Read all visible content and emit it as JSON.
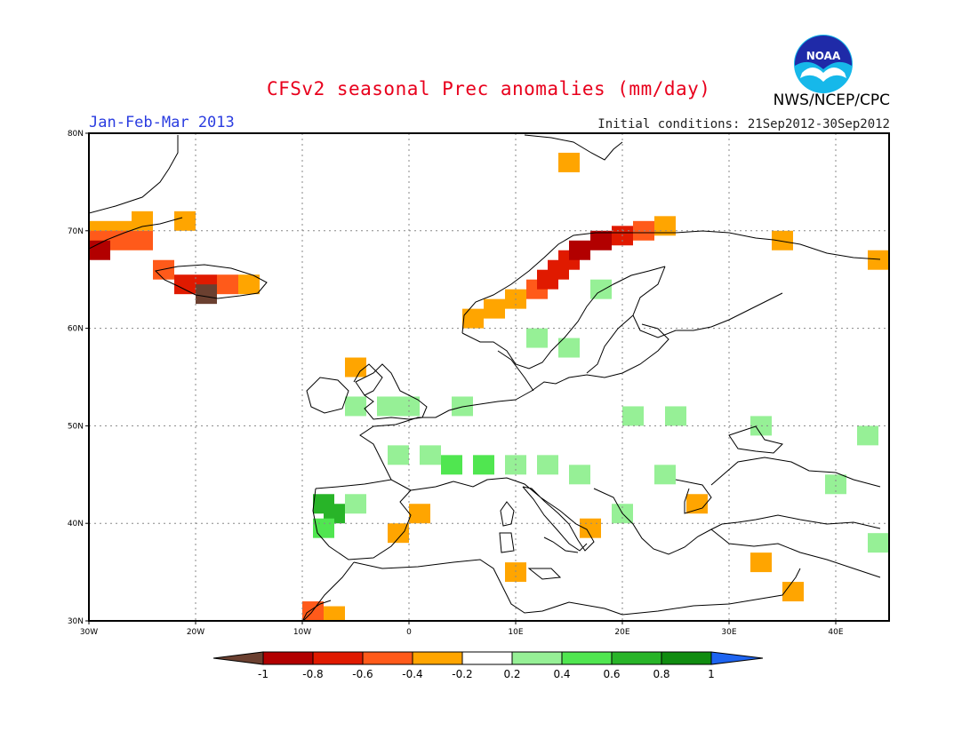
{
  "header": {
    "title": "CFSv2 seasonal Prec anomalies (mm/day)",
    "period": "Jan-Feb-Mar 2013",
    "initial_conditions": "Initial conditions: 21Sep2012-30Sep2012",
    "agency": "NWS/NCEP/CPC",
    "logo_text": "NOAA"
  },
  "axes": {
    "lon_range": [
      -30,
      45
    ],
    "lat_range": [
      30,
      80
    ],
    "lon_ticks": [
      "30W",
      "20W",
      "10W",
      "0",
      "10E",
      "20E",
      "30E",
      "40E"
    ],
    "lat_ticks": [
      "30N",
      "40N",
      "50N",
      "60N",
      "70N",
      "80N"
    ]
  },
  "colorbar": {
    "tick_labels": [
      "-1",
      "-0.8",
      "-0.6",
      "-0.4",
      "-0.2",
      "0.2",
      "0.4",
      "0.6",
      "0.8",
      "1"
    ],
    "colors": {
      "lt_-1": "#6b4030",
      "-1_-0.8": "#b20000",
      "-0.8_-0.6": "#e01a00",
      "-0.6_-0.4": "#ff5a1a",
      "-0.4_-0.2": "#ffa500",
      "-0.2_0.2": "#ffffff",
      "0.2_0.4": "#96f096",
      "0.4_0.6": "#50e650",
      "0.6_0.8": "#28b428",
      "0.8_1": "#108c10",
      "gt_1": "#1e64f0"
    }
  },
  "chart_data": {
    "type": "heatmap",
    "units": "mm/day",
    "cell_size_deg": 2,
    "cells": [
      {
        "lon": -29,
        "lat": 70,
        "v": -0.35
      },
      {
        "lon": -27,
        "lat": 70,
        "v": -0.35
      },
      {
        "lon": -25,
        "lat": 71,
        "v": -0.35
      },
      {
        "lon": -21,
        "lat": 71,
        "v": -0.35
      },
      {
        "lon": -29,
        "lat": 69,
        "v": -0.6
      },
      {
        "lon": -27,
        "lat": 69,
        "v": -0.6
      },
      {
        "lon": -25,
        "lat": 69,
        "v": -0.6
      },
      {
        "lon": -29,
        "lat": 68,
        "v": -0.85
      },
      {
        "lon": -23,
        "lat": 66,
        "v": -0.5
      },
      {
        "lon": -19,
        "lat": 64.5,
        "v": -0.8
      },
      {
        "lon": -21,
        "lat": 64.5,
        "v": -0.8
      },
      {
        "lon": -19,
        "lat": 63.5,
        "v": -1.2
      },
      {
        "lon": -17,
        "lat": 64.5,
        "v": -0.5
      },
      {
        "lon": -15,
        "lat": 64.5,
        "v": -0.3
      },
      {
        "lon": 15,
        "lat": 77,
        "v": -0.3
      },
      {
        "lon": 6,
        "lat": 61,
        "v": -0.3
      },
      {
        "lon": 8,
        "lat": 62,
        "v": -0.3
      },
      {
        "lon": 10,
        "lat": 63,
        "v": -0.35
      },
      {
        "lon": 12,
        "lat": 64,
        "v": -0.55
      },
      {
        "lon": 13,
        "lat": 65,
        "v": -0.7
      },
      {
        "lon": 14,
        "lat": 66,
        "v": -0.7
      },
      {
        "lon": 15,
        "lat": 67,
        "v": -0.75
      },
      {
        "lon": 16,
        "lat": 68,
        "v": -0.9
      },
      {
        "lon": 18,
        "lat": 69,
        "v": -0.85
      },
      {
        "lon": 20,
        "lat": 69.5,
        "v": -0.7
      },
      {
        "lon": 22,
        "lat": 70,
        "v": -0.45
      },
      {
        "lon": 24,
        "lat": 70.5,
        "v": -0.35
      },
      {
        "lon": 35,
        "lat": 69,
        "v": -0.3
      },
      {
        "lon": 44,
        "lat": 67,
        "v": -0.3
      },
      {
        "lon": -5,
        "lat": 56,
        "v": -0.3
      },
      {
        "lon": -1,
        "lat": 39,
        "v": -0.3
      },
      {
        "lon": 1,
        "lat": 41,
        "v": -0.3
      },
      {
        "lon": 10,
        "lat": 35,
        "v": -0.3
      },
      {
        "lon": 17,
        "lat": 39.5,
        "v": -0.3
      },
      {
        "lon": 27,
        "lat": 42,
        "v": -0.3
      },
      {
        "lon": 33,
        "lat": 36,
        "v": -0.3
      },
      {
        "lon": 36,
        "lat": 33,
        "v": -0.3
      },
      {
        "lon": -9,
        "lat": 31,
        "v": -0.6
      },
      {
        "lon": -7,
        "lat": 30.5,
        "v": -0.3
      },
      {
        "lon": -5,
        "lat": 52,
        "v": 0.3
      },
      {
        "lon": -2,
        "lat": 52,
        "v": 0.3
      },
      {
        "lon": 0,
        "lat": 52,
        "v": 0.3
      },
      {
        "lon": 5,
        "lat": 52,
        "v": 0.3
      },
      {
        "lon": -1,
        "lat": 47,
        "v": 0.3
      },
      {
        "lon": 2,
        "lat": 47,
        "v": 0.35
      },
      {
        "lon": 4,
        "lat": 46,
        "v": 0.5
      },
      {
        "lon": 7,
        "lat": 46,
        "v": 0.5
      },
      {
        "lon": 10,
        "lat": 46,
        "v": 0.35
      },
      {
        "lon": 13,
        "lat": 46,
        "v": 0.3
      },
      {
        "lon": 16,
        "lat": 45,
        "v": 0.3
      },
      {
        "lon": -8,
        "lat": 42,
        "v": 0.7
      },
      {
        "lon": -7,
        "lat": 41,
        "v": 0.6
      },
      {
        "lon": -8,
        "lat": 39.5,
        "v": 0.4
      },
      {
        "lon": -5,
        "lat": 42,
        "v": 0.3
      },
      {
        "lon": 12,
        "lat": 59,
        "v": 0.3
      },
      {
        "lon": 15,
        "lat": 58,
        "v": 0.3
      },
      {
        "lon": 21,
        "lat": 51,
        "v": 0.3
      },
      {
        "lon": 25,
        "lat": 51,
        "v": 0.3
      },
      {
        "lon": 33,
        "lat": 50,
        "v": 0.3
      },
      {
        "lon": 43,
        "lat": 49,
        "v": 0.3
      },
      {
        "lon": 40,
        "lat": 44,
        "v": 0.3
      },
      {
        "lon": 44,
        "lat": 38,
        "v": 0.3
      },
      {
        "lon": 20,
        "lat": 41,
        "v": 0.35
      },
      {
        "lon": 18,
        "lat": 64,
        "v": 0.3
      },
      {
        "lon": 24,
        "lat": 45,
        "v": 0.3
      }
    ]
  }
}
